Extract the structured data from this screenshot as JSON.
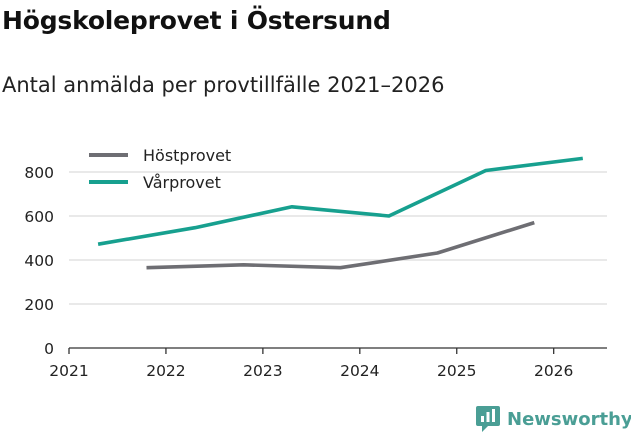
{
  "header": {
    "title": "Högskoleprovet i Östersund",
    "subtitle": "Antal anmälda per provtillfälle 2021–2026"
  },
  "branding": {
    "name": "Newsworthy",
    "color": "#4a9e95"
  },
  "chart_data": {
    "type": "line",
    "title": "Högskoleprovet i Östersund",
    "subtitle": "Antal anmälda per provtillfälle 2021–2026",
    "xlabel": "",
    "ylabel": "",
    "xlim": [
      2021,
      2026.55
    ],
    "ylim": [
      0,
      900
    ],
    "x_ticks": [
      2021,
      2022,
      2023,
      2024,
      2025,
      2026
    ],
    "x_tick_labels": [
      "2021",
      "2022",
      "2023",
      "2024",
      "2025",
      "2026"
    ],
    "y_ticks": [
      0,
      200,
      400,
      600,
      800
    ],
    "y_tick_labels": [
      "0",
      "200",
      "400",
      "600",
      "800"
    ],
    "grid": true,
    "legend": "top-left",
    "series": [
      {
        "name": "Höstprovet",
        "color": "#6e6e73",
        "x": [
          2021.8,
          2022.8,
          2023.8,
          2024.8,
          2025.8
        ],
        "values": [
          365,
          378,
          365,
          432,
          570
        ]
      },
      {
        "name": "Vårprovet",
        "color": "#17a08f",
        "x": [
          2021.3,
          2022.3,
          2023.3,
          2024.3,
          2025.3,
          2026.3
        ],
        "values": [
          472,
          547,
          642,
          600,
          807,
          862
        ]
      }
    ]
  }
}
